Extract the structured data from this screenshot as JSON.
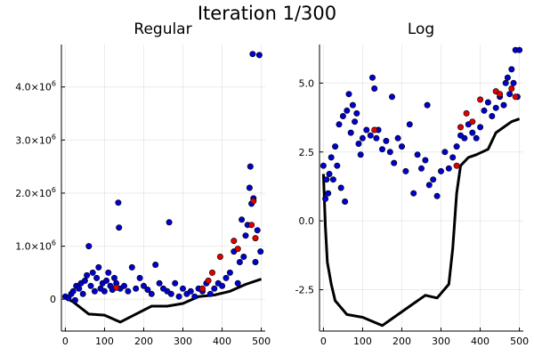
{
  "figure": {
    "title": "Iteration 1/300"
  },
  "colors": {
    "blue": "#0000cc",
    "red": "#e00000",
    "line": "#000000"
  },
  "chart_data": [
    {
      "type": "scatter",
      "title": "Regular",
      "xlabel": "",
      "ylabel": "",
      "xlim": [
        -10,
        510
      ],
      "ylim": [
        -600000,
        4800000
      ],
      "grid": true,
      "legend": "none",
      "x_ticks": [
        0,
        100,
        200,
        300,
        400,
        500
      ],
      "y_ticks": [
        {
          "value": 0,
          "mant": "0",
          "exp": ""
        },
        {
          "value": 1000000,
          "mant": "1.0×10",
          "exp": "6"
        },
        {
          "value": 2000000,
          "mant": "2.0×10",
          "exp": "6"
        },
        {
          "value": 3000000,
          "mant": "3.0×10",
          "exp": "6"
        },
        {
          "value": 4000000,
          "mant": "4.0×10",
          "exp": "6"
        }
      ],
      "series": [
        {
          "kind": "points",
          "color": "blue",
          "points": [
            [
              0,
              50000
            ],
            [
              8,
              20000
            ],
            [
              15,
              100000
            ],
            [
              20,
              150000
            ],
            [
              25,
              -20000
            ],
            [
              28,
              250000
            ],
            [
              35,
              200000
            ],
            [
              40,
              300000
            ],
            [
              45,
              100000
            ],
            [
              50,
              350000
            ],
            [
              55,
              450000
            ],
            [
              60,
              1000000
            ],
            [
              65,
              250000
            ],
            [
              70,
              500000
            ],
            [
              75,
              150000
            ],
            [
              80,
              400000
            ],
            [
              85,
              600000
            ],
            [
              90,
              200000
            ],
            [
              95,
              300000
            ],
            [
              100,
              150000
            ],
            [
              105,
              350000
            ],
            [
              110,
              500000
            ],
            [
              115,
              250000
            ],
            [
              120,
              180000
            ],
            [
              125,
              400000
            ],
            [
              130,
              300000
            ],
            [
              135,
              1820000
            ],
            [
              137,
              1350000
            ],
            [
              140,
              200000
            ],
            [
              150,
              250000
            ],
            [
              160,
              150000
            ],
            [
              170,
              600000
            ],
            [
              180,
              200000
            ],
            [
              190,
              400000
            ],
            [
              200,
              250000
            ],
            [
              210,
              180000
            ],
            [
              220,
              100000
            ],
            [
              230,
              650000
            ],
            [
              240,
              300000
            ],
            [
              250,
              200000
            ],
            [
              260,
              150000
            ],
            [
              265,
              1450000
            ],
            [
              270,
              100000
            ],
            [
              280,
              300000
            ],
            [
              290,
              50000
            ],
            [
              300,
              200000
            ],
            [
              310,
              100000
            ],
            [
              320,
              150000
            ],
            [
              330,
              50000
            ],
            [
              340,
              200000
            ],
            [
              350,
              150000
            ],
            [
              360,
              300000
            ],
            [
              370,
              100000
            ],
            [
              380,
              200000
            ],
            [
              390,
              300000
            ],
            [
              400,
              250000
            ],
            [
              410,
              400000
            ],
            [
              420,
              500000
            ],
            [
              430,
              900000
            ],
            [
              440,
              300000
            ],
            [
              445,
              700000
            ],
            [
              450,
              1500000
            ],
            [
              455,
              800000
            ],
            [
              460,
              1200000
            ],
            [
              465,
              1400000
            ],
            [
              470,
              2100000
            ],
            [
              472,
              2500000
            ],
            [
              475,
              1800000
            ],
            [
              478,
              4620000
            ],
            [
              480,
              1900000
            ],
            [
              485,
              700000
            ],
            [
              490,
              1300000
            ],
            [
              495,
              4600000
            ],
            [
              498,
              900000
            ]
          ]
        },
        {
          "kind": "points",
          "color": "red",
          "points": [
            [
              130,
              220000
            ],
            [
              350,
              200000
            ],
            [
              365,
              350000
            ],
            [
              375,
              500000
            ],
            [
              395,
              800000
            ],
            [
              430,
              1100000
            ],
            [
              440,
              950000
            ],
            [
              475,
              1400000
            ],
            [
              480,
              1850000
            ],
            [
              485,
              1150000
            ]
          ]
        },
        {
          "kind": "line",
          "color": "line",
          "points": [
            [
              0,
              30000
            ],
            [
              20,
              -50000
            ],
            [
              60,
              -280000
            ],
            [
              100,
              -300000
            ],
            [
              140,
              -430000
            ],
            [
              180,
              -280000
            ],
            [
              220,
              -130000
            ],
            [
              260,
              -130000
            ],
            [
              300,
              -80000
            ],
            [
              340,
              50000
            ],
            [
              380,
              80000
            ],
            [
              420,
              150000
            ],
            [
              460,
              280000
            ],
            [
              500,
              380000
            ]
          ]
        }
      ]
    },
    {
      "type": "scatter",
      "title": "Log",
      "xlabel": "",
      "ylabel": "",
      "xlim": [
        -10,
        510
      ],
      "ylim": [
        -4.0,
        6.4
      ],
      "grid": true,
      "legend": "none",
      "x_ticks": [
        0,
        100,
        200,
        300,
        400,
        500
      ],
      "y_ticks": [
        {
          "value": -2.5,
          "mant": "-2.5",
          "exp": ""
        },
        {
          "value": 0,
          "mant": "0.0",
          "exp": ""
        },
        {
          "value": 2.5,
          "mant": "2.5",
          "exp": ""
        },
        {
          "value": 5,
          "mant": "5.0",
          "exp": ""
        }
      ],
      "series": [
        {
          "kind": "points",
          "color": "blue",
          "points": [
            [
              0,
              2.0
            ],
            [
              5,
              0.8
            ],
            [
              8,
              1.5
            ],
            [
              12,
              1.0
            ],
            [
              15,
              1.7
            ],
            [
              20,
              2.3
            ],
            [
              25,
              1.5
            ],
            [
              30,
              2.7
            ],
            [
              35,
              2.0
            ],
            [
              40,
              3.5
            ],
            [
              45,
              1.2
            ],
            [
              50,
              3.8
            ],
            [
              55,
              0.7
            ],
            [
              60,
              4.0
            ],
            [
              65,
              4.6
            ],
            [
              70,
              3.2
            ],
            [
              75,
              4.2
            ],
            [
              80,
              3.6
            ],
            [
              85,
              3.9
            ],
            [
              90,
              2.8
            ],
            [
              95,
              2.4
            ],
            [
              100,
              3.0
            ],
            [
              110,
              3.3
            ],
            [
              120,
              3.1
            ],
            [
              125,
              5.2
            ],
            [
              130,
              4.8
            ],
            [
              135,
              3.0
            ],
            [
              140,
              3.3
            ],
            [
              150,
              2.6
            ],
            [
              160,
              2.9
            ],
            [
              170,
              2.5
            ],
            [
              175,
              4.5
            ],
            [
              180,
              2.1
            ],
            [
              190,
              3.0
            ],
            [
              200,
              2.7
            ],
            [
              210,
              1.8
            ],
            [
              220,
              3.5
            ],
            [
              230,
              1.0
            ],
            [
              240,
              2.4
            ],
            [
              250,
              1.9
            ],
            [
              260,
              2.2
            ],
            [
              265,
              4.2
            ],
            [
              270,
              1.3
            ],
            [
              280,
              1.5
            ],
            [
              290,
              0.9
            ],
            [
              300,
              1.8
            ],
            [
              310,
              2.5
            ],
            [
              320,
              1.9
            ],
            [
              330,
              2.3
            ],
            [
              340,
              2.7
            ],
            [
              350,
              3.1
            ],
            [
              360,
              3.0
            ],
            [
              370,
              3.5
            ],
            [
              380,
              3.2
            ],
            [
              390,
              3.0
            ],
            [
              400,
              3.4
            ],
            [
              410,
              4.0
            ],
            [
              420,
              4.3
            ],
            [
              430,
              3.8
            ],
            [
              440,
              4.1
            ],
            [
              450,
              4.5
            ],
            [
              460,
              4.2
            ],
            [
              465,
              5.0
            ],
            [
              470,
              5.2
            ],
            [
              475,
              4.6
            ],
            [
              480,
              5.5
            ],
            [
              485,
              5.0
            ],
            [
              490,
              6.2
            ],
            [
              495,
              4.5
            ],
            [
              500,
              6.2
            ]
          ]
        },
        {
          "kind": "points",
          "color": "red",
          "points": [
            [
              130,
              3.3
            ],
            [
              340,
              2.0
            ],
            [
              350,
              3.4
            ],
            [
              365,
              3.9
            ],
            [
              380,
              3.6
            ],
            [
              400,
              4.4
            ],
            [
              440,
              4.7
            ],
            [
              450,
              4.6
            ],
            [
              480,
              4.8
            ],
            [
              490,
              4.5
            ]
          ]
        },
        {
          "kind": "line",
          "color": "line",
          "points": [
            [
              0,
              1.7
            ],
            [
              5,
              -0.2
            ],
            [
              10,
              -1.5
            ],
            [
              20,
              -2.3
            ],
            [
              30,
              -2.9
            ],
            [
              60,
              -3.4
            ],
            [
              100,
              -3.5
            ],
            [
              150,
              -3.8
            ],
            [
              180,
              -3.5
            ],
            [
              220,
              -3.1
            ],
            [
              260,
              -2.7
            ],
            [
              290,
              -2.8
            ],
            [
              320,
              -2.3
            ],
            [
              330,
              -1.0
            ],
            [
              340,
              1.0
            ],
            [
              350,
              2.0
            ],
            [
              370,
              2.3
            ],
            [
              390,
              2.4
            ],
            [
              420,
              2.6
            ],
            [
              440,
              3.2
            ],
            [
              460,
              3.4
            ],
            [
              480,
              3.6
            ],
            [
              500,
              3.7
            ]
          ]
        }
      ]
    }
  ]
}
